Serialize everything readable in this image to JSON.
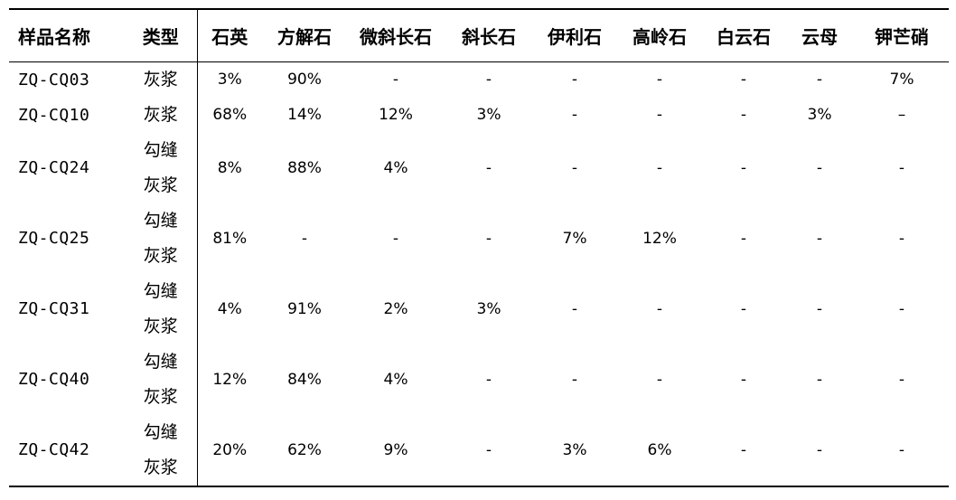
{
  "table": {
    "headers": [
      "样品名称",
      "类型",
      "石英",
      "方解石",
      "微斜长石",
      "斜长石",
      "伊利石",
      "高岭石",
      "白云石",
      "云母",
      "钾芒硝"
    ],
    "rows": [
      {
        "name": "ZQ-CQ03",
        "type": "灰浆",
        "values": [
          "3%",
          "90%",
          "-",
          "-",
          "-",
          "-",
          "-",
          "-",
          "7%"
        ]
      },
      {
        "name": "ZQ-CQ10",
        "type": "灰浆",
        "values": [
          "68%",
          "14%",
          "12%",
          "3%",
          "-",
          "-",
          "-",
          "3%",
          "–"
        ]
      },
      {
        "name": "ZQ-CQ24",
        "type": "勾缝灰浆",
        "values": [
          "8%",
          "88%",
          "4%",
          "-",
          "-",
          "-",
          "-",
          "-",
          "-"
        ]
      },
      {
        "name": "ZQ-CQ25",
        "type": "勾缝灰浆",
        "values": [
          "81%",
          "-",
          "-",
          "-",
          "7%",
          "12%",
          "-",
          "-",
          "-"
        ]
      },
      {
        "name": "ZQ-CQ31",
        "type": "勾缝灰浆",
        "values": [
          "4%",
          "91%",
          "2%",
          "3%",
          "-",
          "-",
          "-",
          "-",
          "-"
        ]
      },
      {
        "name": "ZQ-CQ40",
        "type": "勾缝灰浆",
        "values": [
          "12%",
          "84%",
          "4%",
          "-",
          "-",
          "-",
          "-",
          "-",
          "-"
        ]
      },
      {
        "name": "ZQ-CQ42",
        "type": "勾缝灰浆",
        "values": [
          "20%",
          "62%",
          "9%",
          "-",
          "3%",
          "6%",
          "-",
          "-",
          "-"
        ]
      }
    ]
  }
}
